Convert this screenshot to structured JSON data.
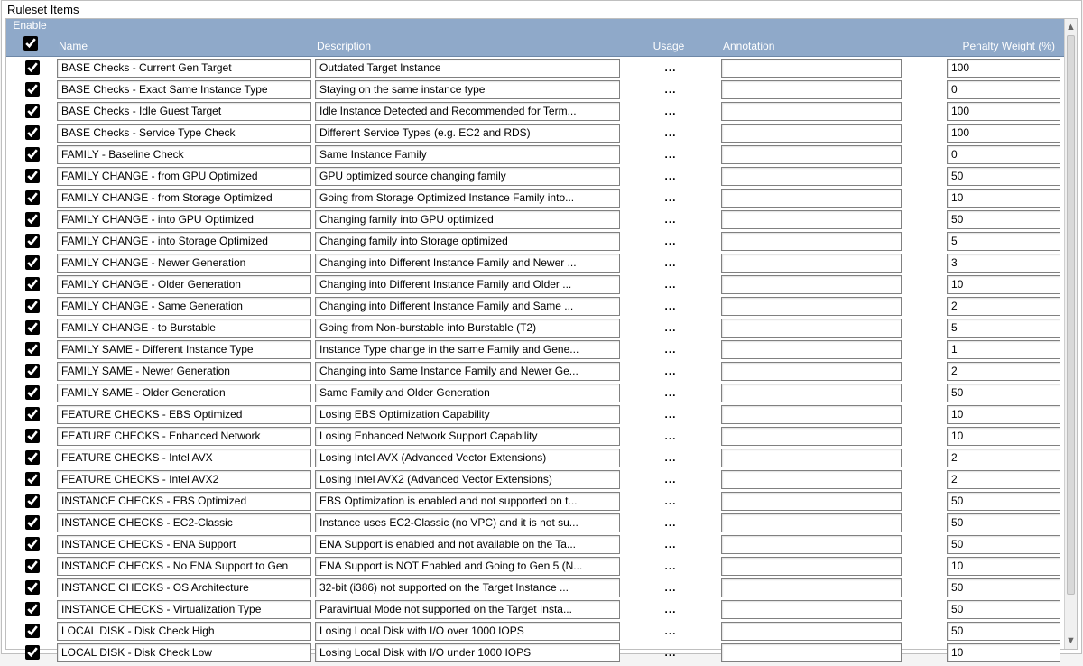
{
  "panel_title": "Ruleset Items",
  "header": {
    "enable": "Enable",
    "name": "Name",
    "description": "Description",
    "usage": "Usage",
    "annotation": "Annotation",
    "penalty": "Penalty Weight (%)"
  },
  "master_enable_checked": true,
  "usage_glyph": "...",
  "rows": [
    {
      "enabled": true,
      "name": "BASE Checks - Current Gen Target",
      "desc": "Outdated Target Instance",
      "anno": "",
      "pen": "100"
    },
    {
      "enabled": true,
      "name": "BASE Checks - Exact Same Instance Type",
      "desc": "Staying on the same instance type",
      "anno": "",
      "pen": "0"
    },
    {
      "enabled": true,
      "name": "BASE Checks - Idle Guest Target",
      "desc": "Idle Instance Detected and Recommended for Term...",
      "anno": "",
      "pen": "100"
    },
    {
      "enabled": true,
      "name": "BASE Checks - Service Type Check",
      "desc": "Different Service Types (e.g. EC2 and RDS)",
      "anno": "",
      "pen": "100"
    },
    {
      "enabled": true,
      "name": "FAMILY - Baseline Check",
      "desc": "Same Instance Family",
      "anno": "",
      "pen": "0"
    },
    {
      "enabled": true,
      "name": "FAMILY CHANGE - from GPU Optimized",
      "desc": "GPU optimized source changing family",
      "anno": "",
      "pen": "50"
    },
    {
      "enabled": true,
      "name": "FAMILY CHANGE - from Storage Optimized",
      "desc": "Going from Storage Optimized Instance Family into...",
      "anno": "",
      "pen": "10"
    },
    {
      "enabled": true,
      "name": "FAMILY CHANGE - into GPU Optimized",
      "desc": "Changing family into GPU optimized",
      "anno": "",
      "pen": "50"
    },
    {
      "enabled": true,
      "name": "FAMILY CHANGE - into Storage Optimized",
      "desc": "Changing family into Storage optimized",
      "anno": "",
      "pen": "5"
    },
    {
      "enabled": true,
      "name": "FAMILY CHANGE - Newer Generation",
      "desc": "Changing into Different Instance Family and Newer ...",
      "anno": "",
      "pen": "3"
    },
    {
      "enabled": true,
      "name": "FAMILY CHANGE - Older Generation",
      "desc": "Changing into Different Instance Family and Older ...",
      "anno": "",
      "pen": "10"
    },
    {
      "enabled": true,
      "name": "FAMILY CHANGE - Same Generation",
      "desc": "Changing into Different Instance Family and Same ...",
      "anno": "",
      "pen": "2"
    },
    {
      "enabled": true,
      "name": "FAMILY CHANGE - to Burstable",
      "desc": "Going from Non-burstable into Burstable (T2)",
      "anno": "",
      "pen": "5"
    },
    {
      "enabled": true,
      "name": "FAMILY SAME - Different Instance Type",
      "desc": "Instance Type change in the same Family and Gene...",
      "anno": "",
      "pen": "1"
    },
    {
      "enabled": true,
      "name": "FAMILY SAME - Newer Generation",
      "desc": "Changing into Same Instance Family and Newer Ge...",
      "anno": "",
      "pen": "2"
    },
    {
      "enabled": true,
      "name": "FAMILY SAME - Older Generation",
      "desc": "Same Family and Older Generation",
      "anno": "",
      "pen": "50"
    },
    {
      "enabled": true,
      "name": "FEATURE CHECKS - EBS Optimized",
      "desc": "Losing EBS Optimization Capability",
      "anno": "",
      "pen": "10"
    },
    {
      "enabled": true,
      "name": "FEATURE CHECKS - Enhanced Network",
      "desc": "Losing Enhanced Network Support Capability",
      "anno": "",
      "pen": "10"
    },
    {
      "enabled": true,
      "name": "FEATURE CHECKS - Intel AVX",
      "desc": "Losing Intel AVX (Advanced Vector Extensions)",
      "anno": "",
      "pen": "2"
    },
    {
      "enabled": true,
      "name": "FEATURE CHECKS - Intel AVX2",
      "desc": "Losing Intel AVX2 (Advanced Vector Extensions)",
      "anno": "",
      "pen": "2"
    },
    {
      "enabled": true,
      "name": "INSTANCE CHECKS - EBS Optimized",
      "desc": "EBS Optimization is enabled and not supported on t...",
      "anno": "",
      "pen": "50"
    },
    {
      "enabled": true,
      "name": "INSTANCE CHECKS - EC2-Classic",
      "desc": "Instance uses EC2-Classic (no VPC) and it is not su...",
      "anno": "",
      "pen": "50"
    },
    {
      "enabled": true,
      "name": "INSTANCE CHECKS - ENA Support",
      "desc": "ENA Support is enabled and not available on the Ta...",
      "anno": "",
      "pen": "50"
    },
    {
      "enabled": true,
      "name": "INSTANCE CHECKS - No ENA Support to Gen",
      "desc": "ENA Support is NOT Enabled and Going to Gen 5 (N...",
      "anno": "",
      "pen": "10"
    },
    {
      "enabled": true,
      "name": "INSTANCE CHECKS - OS Architecture",
      "desc": "32-bit (i386) not supported on the Target Instance ...",
      "anno": "",
      "pen": "50"
    },
    {
      "enabled": true,
      "name": "INSTANCE CHECKS - Virtualization Type",
      "desc": "Paravirtual Mode not supported on the Target Insta...",
      "anno": "",
      "pen": "50"
    },
    {
      "enabled": true,
      "name": "LOCAL DISK - Disk Check High",
      "desc": "Losing Local Disk with I/O over 1000 IOPS",
      "anno": "",
      "pen": "50"
    },
    {
      "enabled": true,
      "name": "LOCAL DISK - Disk Check Low",
      "desc": "Losing Local Disk with I/O under 1000 IOPS",
      "anno": "",
      "pen": "10"
    }
  ],
  "colors": {
    "header_bg": "#8fa9c9",
    "header_fg": "#ffffff",
    "panel_border": "#bfbfbf",
    "input_border": "#808080"
  }
}
